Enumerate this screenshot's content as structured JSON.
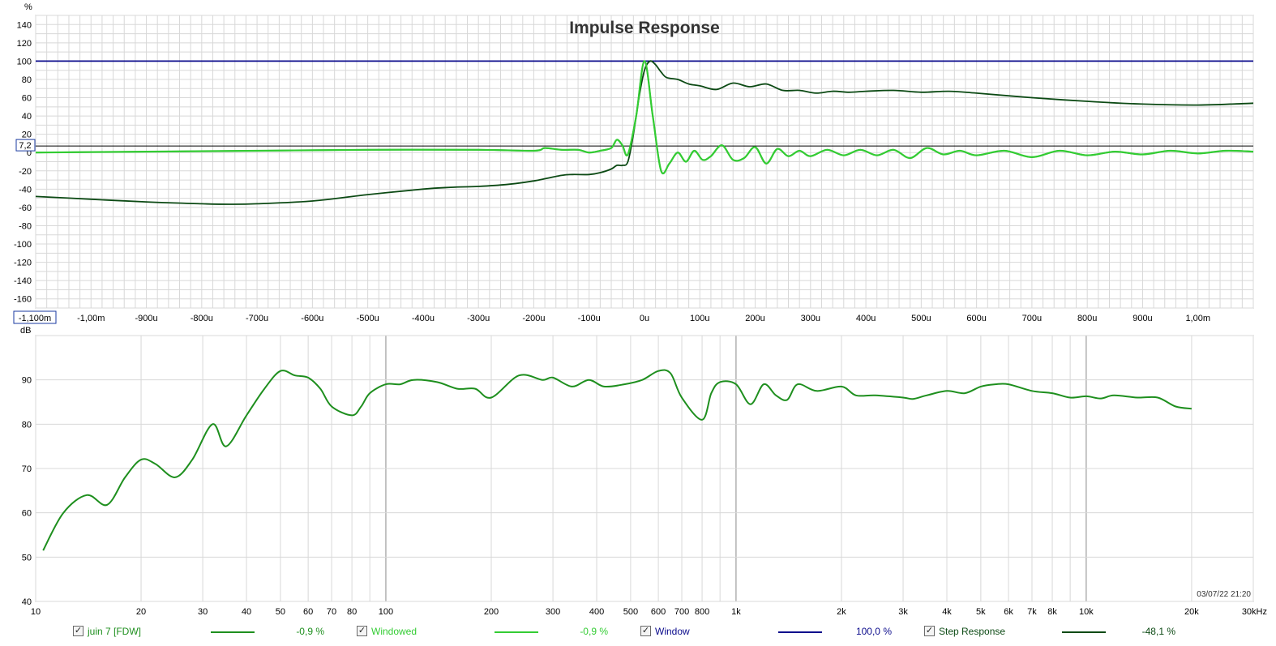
{
  "colors": {
    "grid": "#d8d8d8",
    "grid_major": "#8a8a8a",
    "frame": "#9a9a9a",
    "axis_text": "#000000",
    "window": "#0b0b8c",
    "impulse_windowed": "#33cc33",
    "impulse_main": "#1a8a1a",
    "step": "#0c4a14",
    "freq": "#1e8f1e"
  },
  "legend": [
    {
      "label": "juin 7 [FDW]",
      "value": "-0,9 %",
      "color": "#1e8f1e",
      "checked": true
    },
    {
      "label": "Windowed",
      "value": "-0,9 %",
      "color": "#33cc33",
      "checked": true
    },
    {
      "label": "Window",
      "value": "100,0 %",
      "color": "#0b0b8c",
      "checked": true
    },
    {
      "label": "Step Response",
      "value": "-48,1 %",
      "color": "#0c4a14",
      "checked": true
    }
  ],
  "checkmark": "✓",
  "chart_data": [
    {
      "type": "line",
      "title": "Impulse Response",
      "ylabel": "%",
      "xlabel": "",
      "cursor_label": "7,2",
      "cursor_value": 7.2,
      "xrange_label": "-1,100m",
      "xlim": [
        -1.1,
        1.1
      ],
      "ylim": [
        -170,
        150
      ],
      "grid": true,
      "y_ticks": [
        140,
        120,
        100,
        80,
        60,
        40,
        20,
        0,
        -20,
        -40,
        -60,
        -80,
        -100,
        -120,
        -140,
        -160
      ],
      "y_tick_labels": [
        "140",
        "120",
        "100",
        "80",
        "60",
        "40",
        "20",
        "0",
        "-20",
        "-40",
        "-60",
        "-80",
        "-100",
        "-120",
        "-140",
        "-160"
      ],
      "x_ticks": [
        -1.0,
        -0.9,
        -0.8,
        -0.7,
        -0.6,
        -0.5,
        -0.4,
        -0.3,
        -0.2,
        -0.1,
        0,
        0.1,
        0.2,
        0.3,
        0.4,
        0.5,
        0.6,
        0.7,
        0.8,
        0.9,
        1.0
      ],
      "x_tick_labels": [
        "-1,00m",
        "-900u",
        "-800u",
        "-700u",
        "-600u",
        "-500u",
        "-400u",
        "-300u",
        "-200u",
        "-100u",
        "0u",
        "100u",
        "200u",
        "300u",
        "400u",
        "500u",
        "600u",
        "700u",
        "800u",
        "900u",
        "1,00m"
      ],
      "x_unit": "ms",
      "series": [
        {
          "name": "Window",
          "color": "#0b0b8c",
          "x": [
            -1.1,
            1.1
          ],
          "y": [
            100,
            100
          ]
        },
        {
          "name": "Step Response",
          "color": "#0c4a14",
          "x": [
            -1.1,
            -1.0,
            -0.9,
            -0.8,
            -0.75,
            -0.7,
            -0.6,
            -0.5,
            -0.4,
            -0.35,
            -0.3,
            -0.25,
            -0.2,
            -0.15,
            -0.13,
            -0.1,
            -0.08,
            -0.06,
            -0.05,
            -0.04,
            -0.03,
            -0.02,
            -0.01,
            0,
            0.01,
            0.02,
            0.03,
            0.04,
            0.06,
            0.08,
            0.1,
            0.13,
            0.16,
            0.19,
            0.22,
            0.25,
            0.28,
            0.31,
            0.34,
            0.37,
            0.4,
            0.45,
            0.5,
            0.55,
            0.6,
            0.7,
            0.8,
            0.9,
            1.0,
            1.1
          ],
          "y": [
            -48,
            -51,
            -54,
            -56,
            -56.5,
            -56,
            -53,
            -46,
            -40,
            -38,
            -37,
            -35,
            -31,
            -25,
            -24,
            -24,
            -22,
            -18,
            -14,
            -14,
            -10,
            20,
            60,
            90,
            100,
            96,
            88,
            82,
            80,
            75,
            73,
            69,
            76,
            72,
            75,
            68,
            68,
            65,
            67,
            66,
            67,
            68,
            66,
            67,
            65,
            60,
            56,
            53,
            52,
            54
          ]
        },
        {
          "name": "Windowed",
          "color": "#33cc33",
          "x": [
            -1.1,
            -0.9,
            -0.7,
            -0.5,
            -0.3,
            -0.2,
            -0.18,
            -0.15,
            -0.12,
            -0.1,
            -0.08,
            -0.06,
            -0.05,
            -0.04,
            -0.03,
            -0.015,
            0,
            0.015,
            0.03,
            0.045,
            0.06,
            0.075,
            0.09,
            0.105,
            0.12,
            0.14,
            0.16,
            0.18,
            0.2,
            0.22,
            0.24,
            0.26,
            0.28,
            0.3,
            0.33,
            0.36,
            0.39,
            0.42,
            0.45,
            0.48,
            0.51,
            0.54,
            0.57,
            0.6,
            0.65,
            0.7,
            0.75,
            0.8,
            0.85,
            0.9,
            0.95,
            1.0,
            1.05,
            1.1
          ],
          "y": [
            0,
            1,
            2,
            3,
            3,
            2,
            5,
            3,
            3,
            0,
            2,
            5,
            14,
            8,
            -2,
            40,
            100,
            40,
            -20,
            -12,
            0,
            -10,
            2,
            -8,
            -4,
            8,
            -8,
            -6,
            6,
            -12,
            4,
            -4,
            2,
            -4,
            3,
            -3,
            3,
            -3,
            3,
            -6,
            5,
            -2,
            2,
            -3,
            2,
            -5,
            2,
            -3,
            1,
            -2,
            2,
            -1,
            2,
            1
          ]
        },
        {
          "name": "juin 7 [FDW]",
          "color": "#1a8a1a",
          "x": [
            -1.1,
            -0.9,
            -0.7,
            -0.5,
            -0.3,
            -0.2,
            -0.18,
            -0.15,
            -0.12,
            -0.1,
            -0.08,
            -0.06,
            -0.05,
            -0.04,
            -0.03,
            -0.015,
            0,
            0.015,
            0.03,
            0.045,
            0.06,
            0.075,
            0.09,
            0.105,
            0.12,
            0.14,
            0.16,
            0.18,
            0.2,
            0.22,
            0.24,
            0.26,
            0.28,
            0.3,
            0.33,
            0.36,
            0.39,
            0.42,
            0.45,
            0.48,
            0.51,
            0.54,
            0.57,
            0.6,
            0.65,
            0.7,
            0.75,
            0.8,
            0.85,
            0.9,
            0.95,
            1.0,
            1.05,
            1.1
          ],
          "y": [
            0,
            1,
            2,
            3,
            3,
            2,
            5,
            3,
            3,
            0,
            2,
            5,
            14,
            8,
            -2,
            40,
            100,
            40,
            -20,
            -12,
            0,
            -10,
            2,
            -8,
            -4,
            8,
            -8,
            -6,
            6,
            -12,
            4,
            -4,
            2,
            -4,
            3,
            -3,
            3,
            -3,
            3,
            -6,
            5,
            -2,
            2,
            -3,
            2,
            -5,
            2,
            -3,
            1,
            -2,
            2,
            -1,
            2,
            1
          ]
        }
      ]
    },
    {
      "type": "line",
      "title": "",
      "ylabel": "dB",
      "xlabel": "",
      "xscale": "log",
      "xlim": [
        10,
        30000
      ],
      "ylim": [
        40,
        100
      ],
      "grid": true,
      "timestamp": "03/07/22 21:20",
      "y_ticks": [
        90,
        80,
        70,
        60,
        50,
        40
      ],
      "y_tick_labels": [
        "90",
        "80",
        "70",
        "60",
        "50",
        "40"
      ],
      "x_ticks": [
        10,
        20,
        30,
        40,
        50,
        60,
        70,
        80,
        100,
        200,
        300,
        400,
        500,
        600,
        700,
        800,
        1000,
        2000,
        3000,
        4000,
        5000,
        6000,
        7000,
        8000,
        10000,
        20000,
        30000
      ],
      "x_tick_labels": [
        "10",
        "20",
        "30",
        "40",
        "50",
        "60",
        "70",
        "80",
        "100",
        "200",
        "300",
        "400",
        "500",
        "600",
        "700",
        "800",
        "1k",
        "2k",
        "3k",
        "4k",
        "5k",
        "6k",
        "7k",
        "8k",
        "10k",
        "20k",
        "30kHz"
      ],
      "series": [
        {
          "name": "juin 7 [FDW]",
          "color": "#1e8f1e",
          "x": [
            10.5,
            12,
            14,
            16,
            18,
            20,
            22,
            25,
            28,
            32,
            35,
            40,
            45,
            50,
            55,
            60,
            65,
            70,
            80,
            85,
            90,
            100,
            110,
            120,
            140,
            160,
            180,
            200,
            240,
            280,
            300,
            340,
            380,
            420,
            480,
            540,
            600,
            650,
            700,
            800,
            850,
            900,
            1000,
            1100,
            1200,
            1300,
            1400,
            1500,
            1700,
            2000,
            2200,
            2500,
            3000,
            3200,
            3500,
            4000,
            4500,
            5000,
            5500,
            6000,
            7000,
            8000,
            9000,
            10000,
            11000,
            12000,
            14000,
            16000,
            18000,
            20000
          ],
          "y": [
            51.5,
            60,
            64,
            61.8,
            68,
            72,
            71,
            68,
            72,
            80,
            75,
            82,
            88,
            92,
            91,
            90.5,
            88,
            84,
            82,
            84,
            87,
            89,
            89,
            90,
            89.5,
            88,
            88,
            86,
            91,
            90,
            90.5,
            88.5,
            90,
            88.5,
            89,
            90,
            92,
            91.5,
            86,
            81,
            87,
            89.5,
            89,
            84.5,
            89,
            86.5,
            85.5,
            89,
            87.5,
            88.5,
            86.5,
            86.5,
            86,
            85.7,
            86.5,
            87.5,
            87,
            88.5,
            89,
            89,
            87.5,
            87,
            86,
            86.3,
            85.8,
            86.5,
            86,
            86,
            84,
            83.5
          ]
        }
      ]
    }
  ]
}
